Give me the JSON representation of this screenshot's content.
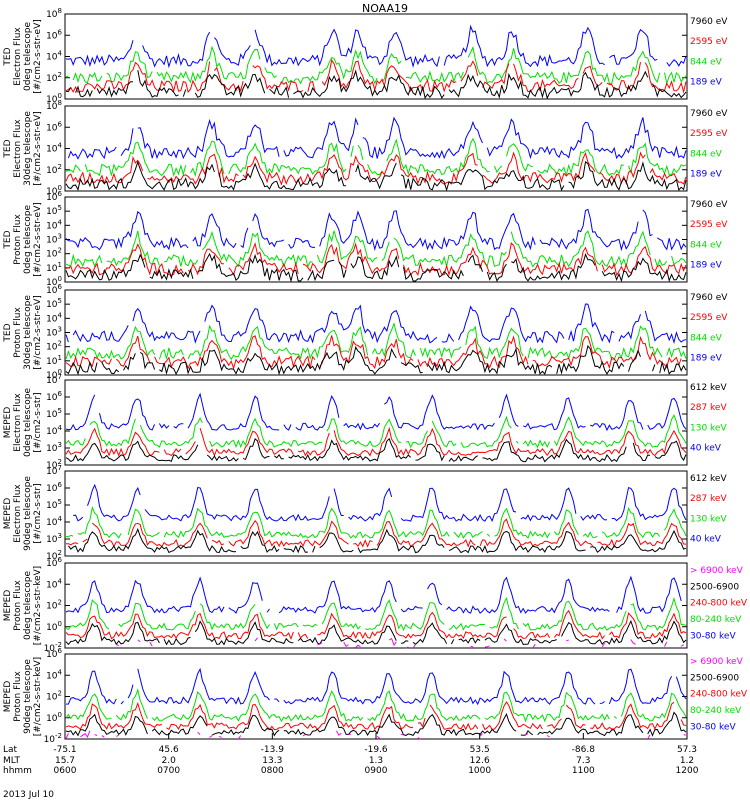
{
  "title": "NOAA19",
  "date_label": "2013 Jul 10",
  "colors": {
    "blue": "#0000ff",
    "red": "#ff0000",
    "green": "#00e000",
    "black": "#000000",
    "magenta": "#ff00ff"
  },
  "chart_data": [
    {
      "type": "line",
      "panel": 1,
      "ylabel": [
        "TED",
        "Electron Flux",
        "0deg telescope",
        "[#/cm2-s-str-eV]"
      ],
      "yscale": "log",
      "ylim_exp": [
        0,
        8
      ],
      "yticks": [
        "10^0",
        "10^2",
        "10^4",
        "10^6",
        "10^8"
      ],
      "series": [
        {
          "name": "7960 eV",
          "color": "black"
        },
        {
          "name": "2595 eV",
          "color": "red"
        },
        {
          "name": "844 eV",
          "color": "green"
        },
        {
          "name": "189 eV",
          "color": "blue"
        }
      ]
    },
    {
      "type": "line",
      "panel": 2,
      "ylabel": [
        "TED",
        "Electron Flux",
        "30deg telescope",
        "[#/cm2-s-str-eV]"
      ],
      "yscale": "log",
      "ylim_exp": [
        0,
        8
      ],
      "yticks": [
        "10^0",
        "10^2",
        "10^4",
        "10^6",
        "10^8"
      ],
      "series": [
        {
          "name": "7960 eV",
          "color": "black"
        },
        {
          "name": "2595 eV",
          "color": "red"
        },
        {
          "name": "844 eV",
          "color": "green"
        },
        {
          "name": "189 eV",
          "color": "blue"
        }
      ]
    },
    {
      "type": "line",
      "panel": 3,
      "ylabel": [
        "TED",
        "Proton Flux",
        "0deg telescope",
        "[#/cm2-s-str-eV]"
      ],
      "yscale": "log",
      "ylim_exp": [
        0,
        6
      ],
      "yticks": [
        "10^0",
        "10^1",
        "10^2",
        "10^3",
        "10^4",
        "10^5",
        "10^6"
      ],
      "series": [
        {
          "name": "7960 eV",
          "color": "black"
        },
        {
          "name": "2595 eV",
          "color": "red"
        },
        {
          "name": "844 eV",
          "color": "green"
        },
        {
          "name": "189 eV",
          "color": "blue"
        }
      ]
    },
    {
      "type": "line",
      "panel": 4,
      "ylabel": [
        "TED",
        "Proton Flux",
        "30deg telescope",
        "[#/cm2-s-str-eV]"
      ],
      "yscale": "log",
      "ylim_exp": [
        0,
        6
      ],
      "yticks": [
        "10^0",
        "10^1",
        "10^2",
        "10^3",
        "10^4",
        "10^5",
        "10^6"
      ],
      "series": [
        {
          "name": "7960 eV",
          "color": "black"
        },
        {
          "name": "2595 eV",
          "color": "red"
        },
        {
          "name": "844 eV",
          "color": "green"
        },
        {
          "name": "189 eV",
          "color": "blue"
        }
      ]
    },
    {
      "type": "line",
      "panel": 5,
      "ylabel": [
        "MEPED",
        "Electron Flux",
        "0deg telescope",
        "[#/cm2-s-str]"
      ],
      "yscale": "log",
      "ylim_exp": [
        2,
        7
      ],
      "yticks": [
        "10^2",
        "10^3",
        "10^4",
        "10^5",
        "10^6",
        "10^7"
      ],
      "series": [
        {
          "name": "612 keV",
          "color": "black"
        },
        {
          "name": "287 keV",
          "color": "red"
        },
        {
          "name": "130 keV",
          "color": "green"
        },
        {
          "name": "40 keV",
          "color": "blue"
        }
      ]
    },
    {
      "type": "line",
      "panel": 6,
      "ylabel": [
        "MEPED",
        "Electron Flux",
        "90deg telescope",
        "[#/cm2-s-str]"
      ],
      "yscale": "log",
      "ylim_exp": [
        2,
        7
      ],
      "yticks": [
        "10^2",
        "10^3",
        "10^4",
        "10^5",
        "10^6",
        "10^7"
      ],
      "series": [
        {
          "name": "612 keV",
          "color": "black"
        },
        {
          "name": "287 keV",
          "color": "red"
        },
        {
          "name": "130 keV",
          "color": "green"
        },
        {
          "name": "40 keV",
          "color": "blue"
        }
      ]
    },
    {
      "type": "line",
      "panel": 7,
      "ylabel": [
        "MEPED",
        "Proton Flux",
        "0deg telescope",
        "[#/cm2-s-str-keV]"
      ],
      "yscale": "log",
      "ylim_exp": [
        -2,
        6
      ],
      "yticks": [
        "10^-2",
        "10^0",
        "10^2",
        "10^4",
        "10^6"
      ],
      "series": [
        {
          "name": "> 6900 keV",
          "color": "magenta"
        },
        {
          "name": "2500-6900",
          "color": "black"
        },
        {
          "name": "240-800 keV",
          "color": "red"
        },
        {
          "name": "80-240 keV",
          "color": "green"
        },
        {
          "name": "30-80 keV",
          "color": "blue"
        }
      ]
    },
    {
      "type": "line",
      "panel": 8,
      "ylabel": [
        "MEPED",
        "Proton Flux",
        "90deg telescope",
        "[#/cm2-s-str-keV]"
      ],
      "yscale": "log",
      "ylim_exp": [
        -2,
        6
      ],
      "yticks": [
        "10^-2",
        "10^0",
        "10^2",
        "10^4",
        "10^6"
      ],
      "series": [
        {
          "name": "> 6900 keV",
          "color": "magenta"
        },
        {
          "name": "2500-6900",
          "color": "black"
        },
        {
          "name": "240-800 keV",
          "color": "red"
        },
        {
          "name": "80-240 keV",
          "color": "green"
        },
        {
          "name": "30-80 keV",
          "color": "blue"
        }
      ]
    }
  ],
  "x_axis": {
    "row_labels": [
      "Lat",
      "MLT",
      "hhmm"
    ],
    "ticks": [
      {
        "lat": "-75.1",
        "mlt": "15.7",
        "hhmm": "0600"
      },
      {
        "lat": "45.6",
        "mlt": "2.0",
        "hhmm": "0700"
      },
      {
        "lat": "-13.9",
        "mlt": "13.3",
        "hhmm": "0800"
      },
      {
        "lat": "-19.6",
        "mlt": "1.3",
        "hhmm": "0900"
      },
      {
        "lat": "53.5",
        "mlt": "12.6",
        "hhmm": "1000"
      },
      {
        "lat": "-86.8",
        "mlt": "7.3",
        "hhmm": "1100"
      },
      {
        "lat": "57.3",
        "mlt": "1.2",
        "hhmm": "1200"
      }
    ]
  }
}
